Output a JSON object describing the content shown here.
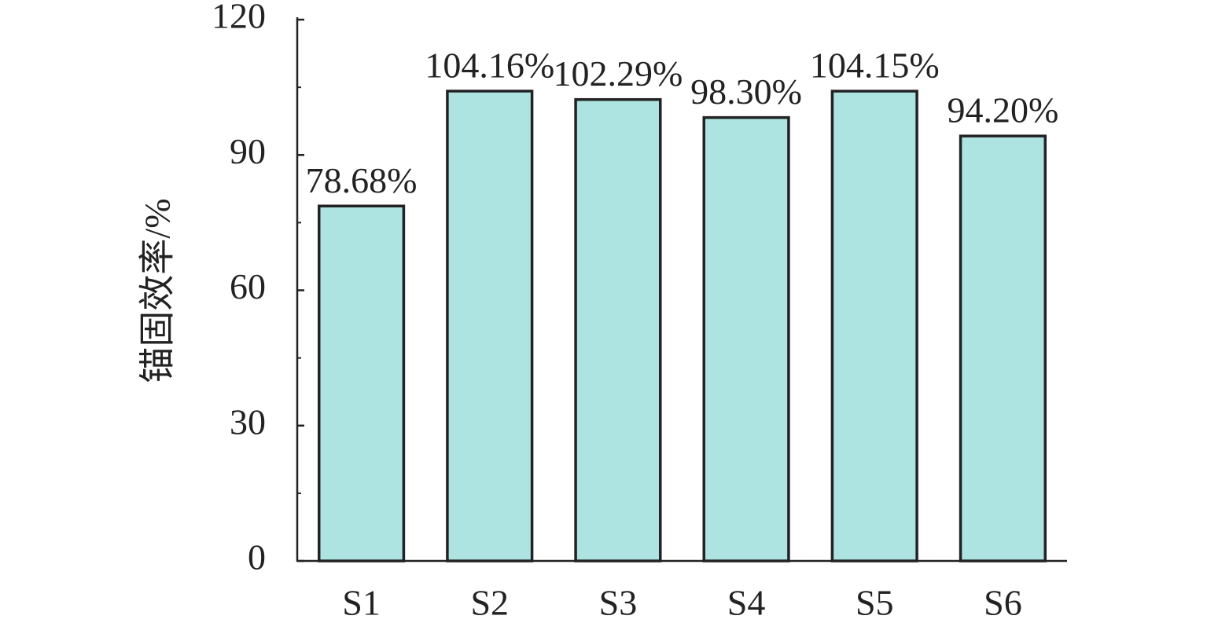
{
  "chart_data": {
    "type": "bar",
    "y_label": "锚固效率/%",
    "categories": [
      "S1",
      "S2",
      "S3",
      "S4",
      "S5",
      "S6"
    ],
    "values": [
      78.68,
      104.16,
      102.29,
      98.3,
      104.15,
      94.2
    ],
    "value_labels": [
      "78.68%",
      "104.16%",
      "102.29%",
      "98.30%",
      "104.15%",
      "94.20%"
    ],
    "color": "#ade4e2",
    "ylim": [
      0,
      120
    ],
    "yticks": [
      0,
      30,
      60,
      90,
      120
    ],
    "yminorticks": [
      15,
      45,
      75,
      105
    ],
    "grid": false
  }
}
